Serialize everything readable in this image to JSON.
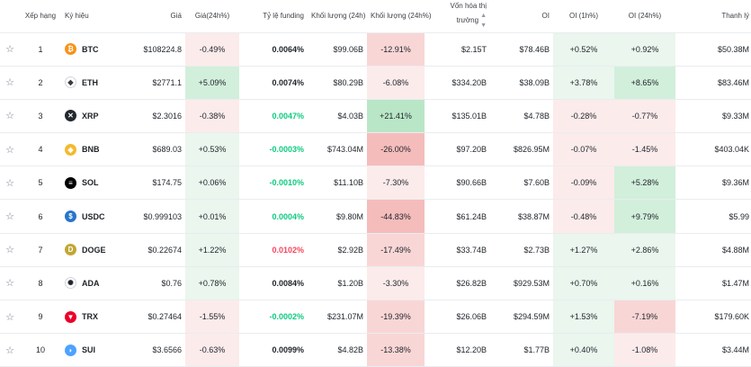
{
  "headers": {
    "rank": "Xếp hạng",
    "symbol": "Ký hiệu",
    "price": "Giá",
    "change24h": "Giá(24h%)",
    "funding": "Tỷ lệ funding",
    "volume24h": "Khối lượng (24h)",
    "volume_change": "Khối lượng (24h%)",
    "market_cap": "Vốn hóa thị trường",
    "oi": "OI",
    "oi1h": "OI (1h%)",
    "oi24h": "OI (24h%)",
    "liquidation": "Thanh lý"
  },
  "colors": {
    "pos_light": "#eaf6ee",
    "pos_mid": "#d2efdb",
    "pos_strong": "#b9e6c7",
    "neg_light": "#fcebeb",
    "neg_mid": "#f9d6d6",
    "neg_strong": "#f5bcbc",
    "text_pos": "#0ecb81",
    "text_neg": "#f6465d"
  },
  "rows": [
    {
      "rank": "1",
      "symbol": "BTC",
      "icon": "bitcoin-icon",
      "icon_color": "#f7931a",
      "icon_glyph": "₿",
      "price": "$108224.8",
      "change": "-0.49%",
      "funding": "0.0064%",
      "funding_tone": "neu",
      "volume": "$99.06B",
      "vol_change": "-12.91%",
      "cap": "$2.15T",
      "oi": "$78.46B",
      "oi1h": "+0.52%",
      "oi24h": "+0.92%",
      "liq": "$50.38M"
    },
    {
      "rank": "2",
      "symbol": "ETH",
      "icon": "ethereum-icon",
      "icon_color": "#ffffff",
      "icon_glyph": "◆",
      "price": "$2771.1",
      "change": "+5.09%",
      "funding": "0.0074%",
      "funding_tone": "neu",
      "volume": "$80.29B",
      "vol_change": "-6.08%",
      "cap": "$334.20B",
      "oi": "$38.09B",
      "oi1h": "+3.78%",
      "oi24h": "+8.65%",
      "liq": "$83.46M"
    },
    {
      "rank": "3",
      "symbol": "XRP",
      "icon": "xrp-icon",
      "icon_color": "#23292f",
      "icon_glyph": "✕",
      "price": "$2.3016",
      "change": "-0.38%",
      "funding": "0.0047%",
      "funding_tone": "pos",
      "volume": "$4.03B",
      "vol_change": "+21.41%",
      "cap": "$135.01B",
      "oi": "$4.78B",
      "oi1h": "-0.28%",
      "oi24h": "-0.77%",
      "liq": "$9.33M"
    },
    {
      "rank": "4",
      "symbol": "BNB",
      "icon": "bnb-icon",
      "icon_color": "#f3ba2f",
      "icon_glyph": "◈",
      "price": "$689.03",
      "change": "+0.53%",
      "funding": "-0.0003%",
      "funding_tone": "pos",
      "volume": "$743.04M",
      "vol_change": "-26.00%",
      "cap": "$97.20B",
      "oi": "$826.95M",
      "oi1h": "-0.07%",
      "oi24h": "-1.45%",
      "liq": "$403.04K"
    },
    {
      "rank": "5",
      "symbol": "SOL",
      "icon": "solana-icon",
      "icon_color": "#000000",
      "icon_glyph": "≡",
      "price": "$174.75",
      "change": "+0.06%",
      "funding": "-0.0010%",
      "funding_tone": "pos",
      "volume": "$11.10B",
      "vol_change": "-7.30%",
      "cap": "$90.66B",
      "oi": "$7.60B",
      "oi1h": "-0.09%",
      "oi24h": "+5.28%",
      "liq": "$9.36M"
    },
    {
      "rank": "6",
      "symbol": "USDC",
      "icon": "usdc-icon",
      "icon_color": "#2775ca",
      "icon_glyph": "$",
      "price": "$0.999103",
      "change": "+0.01%",
      "funding": "0.0004%",
      "funding_tone": "pos",
      "volume": "$9.80M",
      "vol_change": "-44.83%",
      "cap": "$61.24B",
      "oi": "$38.87M",
      "oi1h": "-0.48%",
      "oi24h": "+9.79%",
      "liq": "$5.99"
    },
    {
      "rank": "7",
      "symbol": "DOGE",
      "icon": "dogecoin-icon",
      "icon_color": "#c2a633",
      "icon_glyph": "D",
      "price": "$0.22674",
      "change": "+1.22%",
      "funding": "0.0102%",
      "funding_tone": "neg",
      "volume": "$2.92B",
      "vol_change": "-17.49%",
      "cap": "$33.74B",
      "oi": "$2.73B",
      "oi1h": "+1.27%",
      "oi24h": "+2.86%",
      "liq": "$4.88M"
    },
    {
      "rank": "8",
      "symbol": "ADA",
      "icon": "cardano-icon",
      "icon_color": "#ffffff",
      "icon_glyph": "✺",
      "price": "$0.76",
      "change": "+0.78%",
      "funding": "0.0084%",
      "funding_tone": "neu",
      "volume": "$1.20B",
      "vol_change": "-3.30%",
      "cap": "$26.82B",
      "oi": "$929.53M",
      "oi1h": "+0.70%",
      "oi24h": "+0.16%",
      "liq": "$1.47M"
    },
    {
      "rank": "9",
      "symbol": "TRX",
      "icon": "tron-icon",
      "icon_color": "#eb0029",
      "icon_glyph": "▼",
      "price": "$0.27464",
      "change": "-1.55%",
      "funding": "-0.0002%",
      "funding_tone": "pos",
      "volume": "$231.07M",
      "vol_change": "-19.39%",
      "cap": "$26.06B",
      "oi": "$294.59M",
      "oi1h": "+1.53%",
      "oi24h": "-7.19%",
      "liq": "$179.60K"
    },
    {
      "rank": "10",
      "symbol": "SUI",
      "icon": "sui-icon",
      "icon_color": "#4da2ff",
      "icon_glyph": "◗",
      "price": "$3.6566",
      "change": "-0.63%",
      "funding": "0.0099%",
      "funding_tone": "neu",
      "volume": "$4.82B",
      "vol_change": "-13.38%",
      "cap": "$12.20B",
      "oi": "$1.77B",
      "oi1h": "+0.40%",
      "oi24h": "-1.08%",
      "liq": "$3.44M"
    }
  ]
}
